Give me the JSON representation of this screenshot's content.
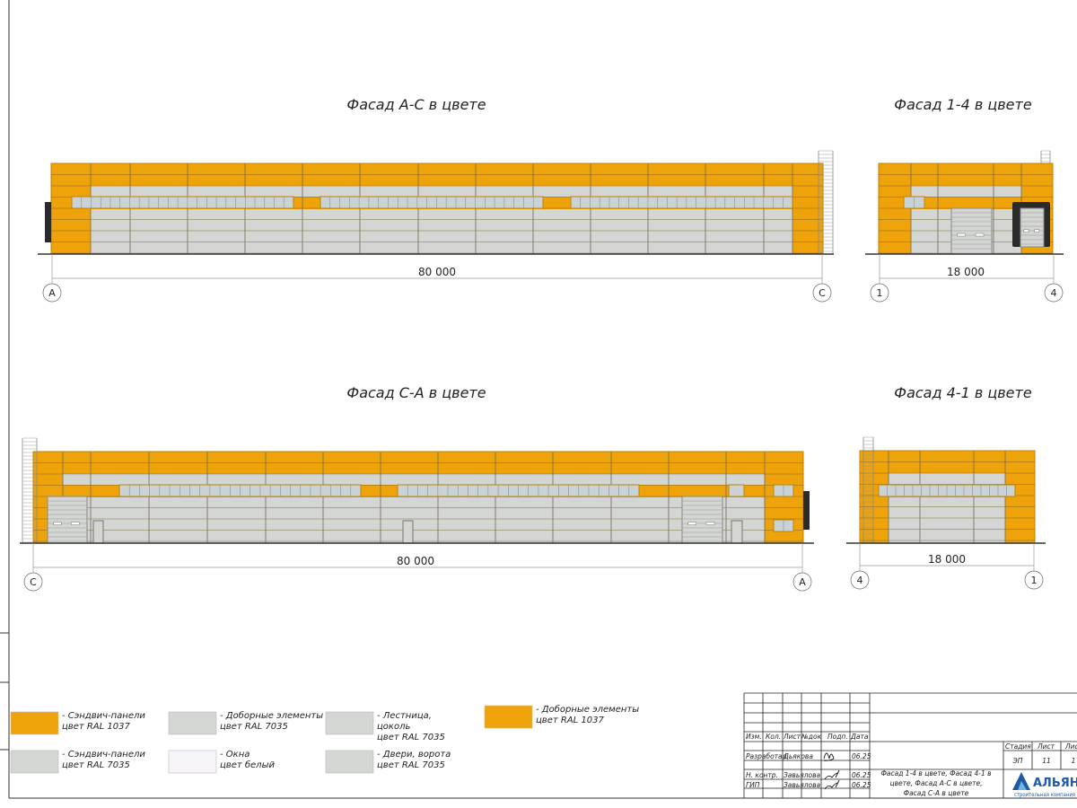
{
  "colors": {
    "orange": "#EFA30A",
    "gray": "#D3D6D2",
    "window": "#C9D3D6",
    "white": "#F7F5F8",
    "dark": "#2a2a2a"
  },
  "facades": [
    {
      "title": "Фасад А-С в цвете",
      "dimension": "80 000",
      "axis_left": "А",
      "axis_right": "С"
    },
    {
      "title": "Фасад 1-4 в цвете",
      "dimension": "18 000",
      "axis_left": "1",
      "axis_right": "4"
    },
    {
      "title": "Фасад С-А в цвете",
      "dimension": "80 000",
      "axis_left": "С",
      "axis_right": "А"
    },
    {
      "title": "Фасад 4-1 в цвете",
      "dimension": "18 000",
      "axis_left": "4",
      "axis_right": "1"
    }
  ],
  "legend": [
    {
      "line1": "- Сэндвич-панели",
      "line2": "цвет RAL 1037",
      "line3": "",
      "color": "#EFA30A"
    },
    {
      "line1": "- Доборные элементы",
      "line2": "цвет RAL 7035",
      "line3": "",
      "color": "#D3D6D2"
    },
    {
      "line1": "- Лестница,",
      "line2": "цоколь",
      "line3": "цвет RAL 7035",
      "color": "#D3D6D2"
    },
    {
      "line1": "- Доборные элементы",
      "line2": "цвет RAL 1037",
      "line3": "",
      "color": "#EFA30A"
    },
    {
      "line1": "- Сэндвич-панели",
      "line2": "цвет RAL 7035",
      "line3": "",
      "color": "#D3D6D2"
    },
    {
      "line1": "- Окна",
      "line2": "цвет белый",
      "line3": "",
      "color": "#F7F5F8"
    },
    {
      "line1": "- Двери, ворота",
      "line2": "цвет RAL 7035",
      "line3": "",
      "color": "#D3D6D2"
    }
  ],
  "title_block": {
    "headers": [
      "Изм.",
      "Кол.",
      "Лист",
      "№док",
      "Подп.",
      "Дата"
    ],
    "rows": [
      {
        "role": "Разработал",
        "name": "Дьякова",
        "date": "06.25"
      },
      {
        "role": "Н. контр.",
        "name": "Завьялова",
        "date": "06.25"
      },
      {
        "role": "ГИП",
        "name": "Завьялова",
        "date": "06.25"
      }
    ],
    "stage_label": "Стадия",
    "sheet_label": "Лист",
    "sheets_label": "Листов",
    "stage": "ЭП",
    "sheet": "11",
    "sheets": "1",
    "description": [
      "Фасад 1-4 в цвете, Фасад 4-1 в",
      "цвете, Фасад А-С в цвете,",
      "Фасад С-А в цвете"
    ],
    "company": "АЛЬЯНС",
    "company_sub": "строительная компания"
  }
}
